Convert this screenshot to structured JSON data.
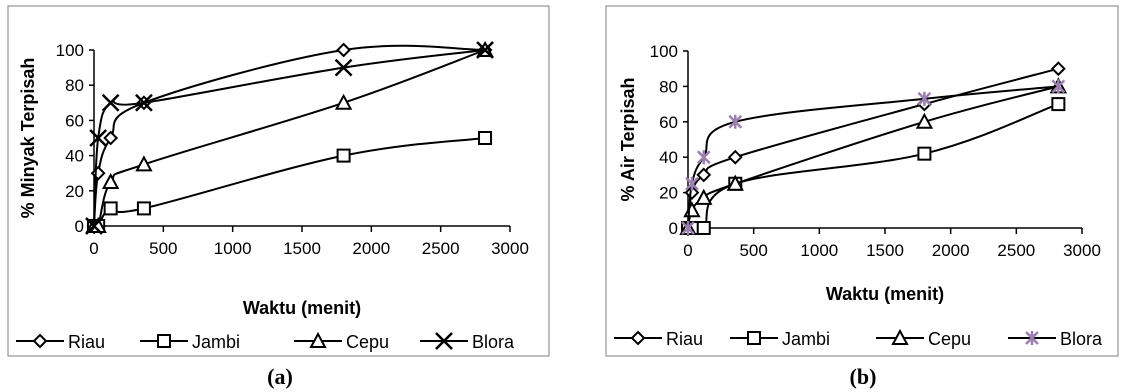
{
  "chart_data": [
    {
      "panel": "a",
      "type": "scatter",
      "ylabel": "% Minyak Terpisah",
      "xlabel": "Waktu (menit)",
      "caption": "(a)",
      "xlim": [
        0,
        3000
      ],
      "ylim": [
        0,
        100
      ],
      "xticks": [
        "0",
        "500",
        "1000",
        "1500",
        "2000",
        "2500",
        "3000"
      ],
      "yticks": [
        "0",
        "20",
        "40",
        "60",
        "80",
        "100"
      ],
      "legend_position": "bottom",
      "series": [
        {
          "name": "Riau",
          "marker": "diamond",
          "color": "#000000",
          "x": [
            0,
            30,
            120,
            360,
            1800,
            2820
          ],
          "y": [
            0,
            30,
            50,
            70,
            100,
            100
          ]
        },
        {
          "name": "Jambi",
          "marker": "square",
          "color": "#000000",
          "x": [
            0,
            30,
            120,
            360,
            1800,
            2820
          ],
          "y": [
            0,
            0,
            10,
            10,
            40,
            50
          ]
        },
        {
          "name": "Cepu",
          "marker": "triangle",
          "color": "#000000",
          "x": [
            0,
            30,
            120,
            360,
            1800,
            2820
          ],
          "y": [
            0,
            0,
            25,
            35,
            70,
            100
          ]
        },
        {
          "name": "Blora",
          "marker": "x",
          "color": "#000000",
          "x": [
            0,
            30,
            120,
            360,
            1800,
            2820
          ],
          "y": [
            0,
            50,
            70,
            70,
            90,
            100
          ]
        }
      ]
    },
    {
      "panel": "b",
      "type": "scatter",
      "ylabel": "% Air Terpisah",
      "xlabel": "Waktu (menit)",
      "caption": "(b)",
      "xlim": [
        0,
        3000
      ],
      "ylim": [
        0,
        100
      ],
      "xticks": [
        "0",
        "500",
        "1000",
        "1500",
        "2000",
        "2500",
        "3000"
      ],
      "yticks": [
        "0",
        "20",
        "40",
        "60",
        "80",
        "100"
      ],
      "legend_position": "bottom",
      "series": [
        {
          "name": "Riau",
          "marker": "diamond",
          "color": "#000000",
          "x": [
            0,
            30,
            120,
            360,
            1800,
            2820
          ],
          "y": [
            0,
            20,
            30,
            40,
            70,
            90
          ]
        },
        {
          "name": "Jambi",
          "marker": "square",
          "color": "#000000",
          "x": [
            0,
            30,
            120,
            360,
            1800,
            2820
          ],
          "y": [
            0,
            0,
            0,
            25,
            42,
            70
          ]
        },
        {
          "name": "Cepu",
          "marker": "triangle",
          "color": "#000000",
          "x": [
            0,
            30,
            120,
            360,
            1800,
            2820
          ],
          "y": [
            0,
            10,
            17,
            25,
            60,
            80
          ]
        },
        {
          "name": "Blora",
          "marker": "star",
          "color": "#9b7fb0",
          "x": [
            0,
            30,
            120,
            360,
            1800,
            2820
          ],
          "y": [
            0,
            25,
            40,
            60,
            73,
            80
          ]
        }
      ]
    }
  ]
}
